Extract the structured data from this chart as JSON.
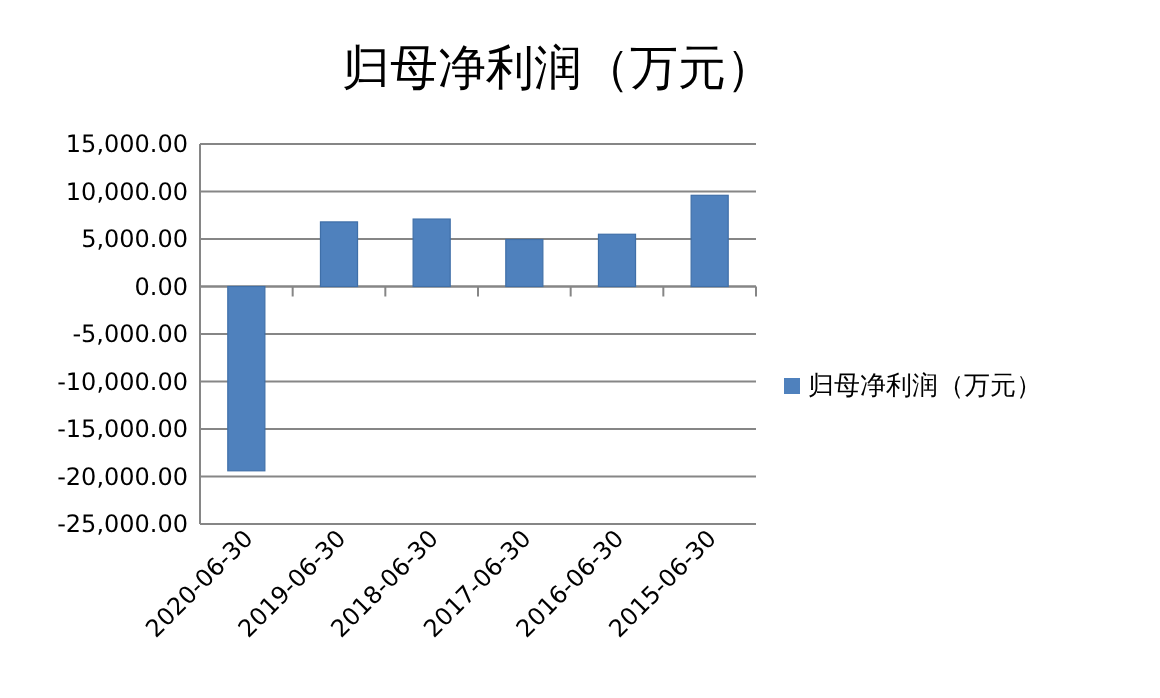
{
  "chart_data": {
    "type": "bar",
    "title": "归母净利润（万元）",
    "categories": [
      "2020-06-30",
      "2019-06-30",
      "2018-06-30",
      "2017-06-30",
      "2016-06-30",
      "2015-06-30"
    ],
    "series": [
      {
        "name": "归母净利润（万元）",
        "color": "#4f81bd",
        "values": [
          -19400,
          6800,
          7100,
          4950,
          5500,
          9600
        ]
      }
    ],
    "ylim": [
      -25000,
      15000
    ],
    "yticks": [
      {
        "value": -25000,
        "label": "-25,000.00"
      },
      {
        "value": -20000,
        "label": "-20,000.00"
      },
      {
        "value": -15000,
        "label": "-15,000.00"
      },
      {
        "value": -10000,
        "label": "-10,000.00"
      },
      {
        "value": -5000,
        "label": "-5,000.00"
      },
      {
        "value": 0,
        "label": "0.00"
      },
      {
        "value": 5000,
        "label": "5,000.00"
      },
      {
        "value": 10000,
        "label": "10,000.00"
      },
      {
        "value": 15000,
        "label": "15,000.00"
      }
    ],
    "grid": "y",
    "legend": "right"
  }
}
